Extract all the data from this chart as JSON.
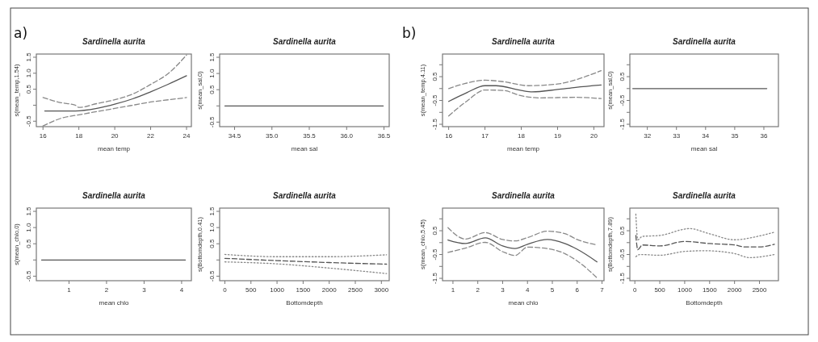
{
  "chart_data": [
    {
      "type": "line",
      "title": "Sardinella aurita",
      "xlabel": "mean temp",
      "ylabel": "s(mean_temp,1.54)",
      "annotations": [
        "a)"
      ],
      "xlim": [
        15.63,
        24.27
      ],
      "xticks": [
        16,
        18,
        20,
        22,
        24
      ],
      "ylim": [
        -0.67,
        1.6
      ],
      "yticks": [
        {
          "value": -0.5,
          "label": "-0.5"
        },
        {
          "value": 0,
          "label": null
        },
        0.5,
        {
          "value": 1,
          "label": "1.0"
        },
        1.5
      ],
      "series": [
        {
          "color": "#555555",
          "line_style": "solid",
          "x": [
            16.1,
            17.8,
            19,
            20,
            21,
            22,
            23,
            24
          ],
          "values": [
            -0.18,
            -0.18,
            -0.1,
            0.03,
            0.2,
            0.42,
            0.66,
            0.92
          ]
        },
        {
          "color": "#888888",
          "line_style": "dashed",
          "x": [
            16,
            17,
            17.8,
            18,
            19,
            20,
            21,
            22,
            23,
            24
          ],
          "values": [
            0.24,
            0.08,
            0.0,
            -0.07,
            0.05,
            0.17,
            0.35,
            0.65,
            1.0,
            1.57
          ]
        },
        {
          "color": "#888888",
          "line_style": "dashed",
          "x": [
            16,
            17,
            18,
            19,
            20,
            21,
            22,
            23,
            24
          ],
          "values": [
            -0.65,
            -0.41,
            -0.3,
            -0.2,
            -0.1,
            0.0,
            0.1,
            0.17,
            0.24
          ]
        }
      ]
    },
    {
      "type": "line",
      "title": "Sardinella aurita",
      "xlabel": "mean sal",
      "ylabel": "s(mean_sal,0)",
      "xlim": [
        34.3,
        36.57
      ],
      "xticks": [
        34.5,
        {
          "value": 35,
          "label": "35.0"
        },
        35.5,
        {
          "value": 36,
          "label": "36.0"
        },
        36.5
      ],
      "ylim": [
        -0.64,
        1.6
      ],
      "yticks": [
        {
          "value": -0.5,
          "label": "-0.5"
        },
        {
          "value": 0,
          "label": null
        },
        0.5,
        {
          "value": 1,
          "label": "1.0"
        },
        1.5
      ],
      "series": [
        {
          "color": "#555555",
          "line_style": "solid",
          "x": [
            34.37,
            36.49
          ],
          "values": [
            0,
            0
          ]
        }
      ]
    },
    {
      "type": "line",
      "title": "Sardinella aurita",
      "xlabel": "mean temp",
      "ylabel": "s(mean_temp,4.11)",
      "annotations": [
        "b)"
      ],
      "xlim": [
        15.83,
        20.28
      ],
      "xticks": [
        16,
        17,
        18,
        19,
        20
      ],
      "ylim": [
        -1.6,
        1.45
      ],
      "yticks": [
        -1.5,
        {
          "value": -1,
          "label": null
        },
        -0.5,
        {
          "value": 0,
          "label": null
        },
        0.5,
        {
          "value": 1,
          "label": null
        }
      ],
      "series": [
        {
          "color": "#555555",
          "line_style": "solid",
          "x": [
            16,
            16.5,
            17,
            17.3,
            18,
            18.3,
            19,
            19.5,
            20.2
          ],
          "values": [
            -0.54,
            -0.17,
            0.12,
            0.12,
            -0.08,
            -0.14,
            -0.04,
            0.05,
            0.15
          ]
        },
        {
          "color": "#888888",
          "line_style": "dashed",
          "x": [
            16,
            16.5,
            17,
            17.5,
            18.2,
            19,
            19.5,
            20.2
          ],
          "values": [
            0.0,
            0.23,
            0.35,
            0.29,
            0.12,
            0.19,
            0.37,
            0.75
          ]
        },
        {
          "color": "#888888",
          "line_style": "dashed",
          "x": [
            16,
            16.5,
            17,
            17.5,
            18,
            18.5,
            19,
            19.5,
            20.2
          ],
          "values": [
            -1.15,
            -0.53,
            -0.06,
            -0.08,
            -0.3,
            -0.39,
            -0.38,
            -0.37,
            -0.42
          ]
        }
      ]
    },
    {
      "type": "line",
      "title": "Sardinella aurita",
      "xlabel": "mean sal",
      "ylabel": "s(mean_sal,0)",
      "xlim": [
        31.4,
        36.5
      ],
      "xticks": [
        32,
        33,
        34,
        35,
        36
      ],
      "ylim": [
        -1.6,
        1.45
      ],
      "yticks": [
        -1.5,
        {
          "value": -1,
          "label": null
        },
        -0.5,
        {
          "value": 0,
          "label": null
        },
        0.5,
        {
          "value": 1,
          "label": null
        }
      ],
      "series": [
        {
          "color": "#555555",
          "line_style": "solid",
          "x": [
            31.5,
            36.1
          ],
          "values": [
            0,
            0
          ]
        }
      ]
    },
    {
      "type": "line",
      "title": "Sardinella aurita",
      "xlabel": "mean chlo",
      "ylabel": "s(mean_chlo,0)",
      "xlim": [
        0.13,
        4.26
      ],
      "xticks": [
        1,
        2,
        3,
        4
      ],
      "ylim": [
        -0.64,
        1.6
      ],
      "yticks": [
        {
          "value": -0.5,
          "label": "-0.5"
        },
        {
          "value": 0,
          "label": null
        },
        0.5,
        {
          "value": 1,
          "label": "1.0"
        },
        1.5
      ],
      "series": [
        {
          "color": "#555555",
          "line_style": "solid",
          "x": [
            0.27,
            4.1
          ],
          "values": [
            0,
            0
          ]
        }
      ]
    },
    {
      "type": "line",
      "title": "Sardinella aurita",
      "xlabel": "Bottomdepth",
      "ylabel": "s(Bottomdepth,0.41)",
      "xlim": [
        -100,
        3150
      ],
      "xticks": [
        0,
        500,
        1000,
        1500,
        2000,
        2500,
        3000
      ],
      "ylim": [
        -0.64,
        1.6
      ],
      "yticks": [
        {
          "value": -0.5,
          "label": "-0.5"
        },
        {
          "value": 0,
          "label": null
        },
        0.5,
        {
          "value": 1,
          "label": "1.0"
        },
        1.5
      ],
      "series": [
        {
          "color": "#555555",
          "line_style": "dashed",
          "x": [
            0,
            1000,
            2000,
            3100
          ],
          "values": [
            0.05,
            -0.02,
            -0.08,
            -0.13
          ]
        },
        {
          "color": "#888888",
          "line_style": "dotted",
          "x": [
            0,
            1000,
            2000,
            3100
          ],
          "values": [
            0.17,
            0.1,
            0.1,
            0.16
          ]
        },
        {
          "color": "#888888",
          "line_style": "dotted",
          "x": [
            0,
            1000,
            2000,
            3100
          ],
          "values": [
            -0.06,
            -0.12,
            -0.25,
            -0.42
          ]
        }
      ]
    },
    {
      "type": "line",
      "title": "Sardinella aurita",
      "xlabel": "mean chlo",
      "ylabel": "s(mean_chlo,5.45)",
      "xlim": [
        0.58,
        7.08
      ],
      "xticks": [
        1,
        2,
        3,
        4,
        5,
        6,
        7
      ],
      "ylim": [
        -1.6,
        1.45
      ],
      "yticks": [
        -1.5,
        {
          "value": -1,
          "label": null
        },
        -0.5,
        {
          "value": 0,
          "label": null
        },
        0.5,
        {
          "value": 1,
          "label": null
        }
      ],
      "series": [
        {
          "color": "#555555",
          "line_style": "solid",
          "x": [
            0.8,
            1.5,
            2.3,
            3,
            3.5,
            4,
            4.8,
            5.5,
            6,
            6.8
          ],
          "values": [
            0.11,
            -0.04,
            0.2,
            -0.14,
            -0.25,
            -0.07,
            0.13,
            -0.04,
            -0.28,
            -0.81
          ]
        },
        {
          "color": "#888888",
          "line_style": "dashed",
          "x": [
            0.8,
            1.5,
            2.3,
            3,
            3.5,
            4,
            4.8,
            5.5,
            6,
            6.8
          ],
          "values": [
            0.63,
            0.15,
            0.42,
            0.13,
            0.07,
            0.21,
            0.48,
            0.38,
            0.13,
            -0.1
          ]
        },
        {
          "color": "#888888",
          "line_style": "dashed",
          "x": [
            0.8,
            1.5,
            2.3,
            3,
            3.5,
            4,
            4.8,
            5.5,
            6,
            6.8
          ],
          "values": [
            -0.41,
            -0.23,
            0.01,
            -0.38,
            -0.54,
            -0.19,
            -0.25,
            -0.46,
            -0.77,
            -1.48
          ]
        }
      ]
    },
    {
      "type": "line",
      "title": "Sardinella aurita",
      "xlabel": "Bottomdepth",
      "ylabel": "s(Bottomdepth,7.89)",
      "xlim": [
        -100,
        2880
      ],
      "xticks": [
        0,
        500,
        1000,
        1500,
        2000,
        2500
      ],
      "ylim": [
        -1.6,
        1.45
      ],
      "yticks": [
        -1.5,
        {
          "value": -1,
          "label": null
        },
        -0.5,
        {
          "value": 0,
          "label": null
        },
        0.5,
        {
          "value": 1,
          "label": null
        }
      ],
      "series": [
        {
          "color": "#555555",
          "line_style": "dashed",
          "x": [
            20,
            60,
            150,
            500,
            1000,
            1500,
            2000,
            2200,
            2500,
            2800
          ],
          "values": [
            0.3,
            -0.3,
            -0.1,
            -0.14,
            0.05,
            -0.04,
            -0.1,
            -0.18,
            -0.18,
            -0.07
          ]
        },
        {
          "color": "#888888",
          "line_style": "dotted",
          "x": [
            20,
            60,
            150,
            500,
            1100,
            1500,
            2000,
            2500,
            2800
          ],
          "values": [
            1.2,
            0.12,
            0.26,
            0.3,
            0.59,
            0.37,
            0.12,
            0.28,
            0.44
          ]
        },
        {
          "color": "#888888",
          "line_style": "dotted",
          "x": [
            20,
            100,
            500,
            1000,
            1400,
            2000,
            2300,
            2800
          ],
          "values": [
            -0.59,
            -0.5,
            -0.53,
            -0.37,
            -0.34,
            -0.46,
            -0.63,
            -0.5
          ]
        }
      ]
    }
  ]
}
